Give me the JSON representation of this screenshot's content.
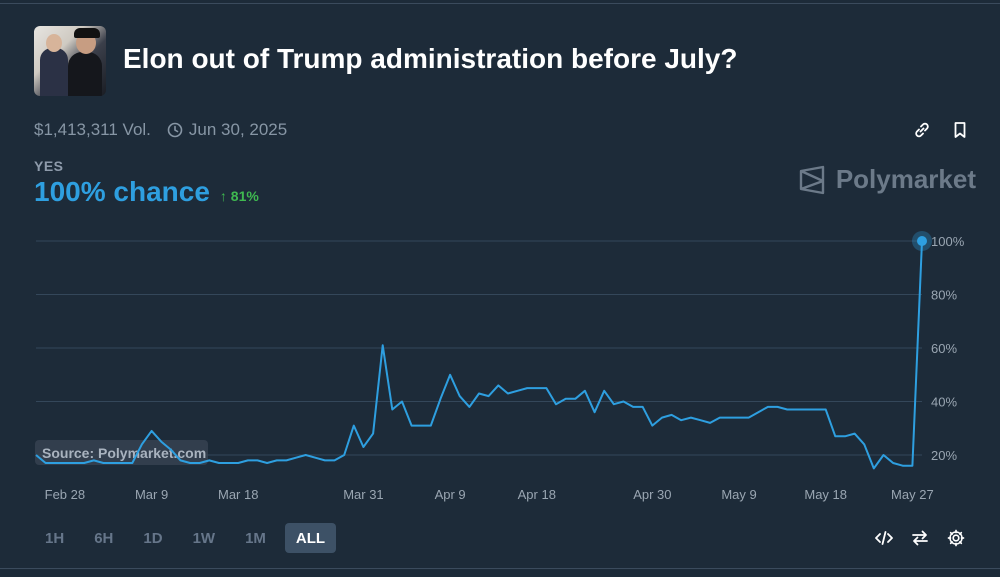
{
  "header": {
    "title": "Elon out of Trump administration before July?",
    "volume": "$1,413,311 Vol.",
    "end_date": "Jun 30, 2025"
  },
  "outcome": {
    "label": "YES",
    "chance": "100% chance",
    "delta": "81%",
    "delta_color": "#3fb950",
    "accent": "#2e9fe0"
  },
  "brand": {
    "name": "Polymarket"
  },
  "source_label": "Source: Polymarket.com",
  "time_ranges": [
    "1H",
    "6H",
    "1D",
    "1W",
    "1M",
    "ALL"
  ],
  "time_range_selected": "ALL",
  "icons": {
    "top": [
      "link-icon",
      "bookmark-icon"
    ],
    "bottom": [
      "embed-code-icon",
      "swap-icon",
      "settings-icon"
    ],
    "meta": "clock-icon"
  },
  "chart_data": {
    "type": "line",
    "x_start": "Feb 25",
    "x_tick_labels": [
      "Feb 28",
      "Mar 9",
      "Mar 18",
      "Mar 31",
      "Apr 9",
      "Apr 18",
      "Apr 30",
      "May 9",
      "May 18",
      "May 27"
    ],
    "y_tick_labels": [
      "20%",
      "40%",
      "60%",
      "80%",
      "100%"
    ],
    "ylim": [
      12,
      104
    ],
    "y_axis_side": "right",
    "grid": true,
    "series": [
      {
        "color": "#2e9fe0",
        "points": [
          [
            "Feb 25",
            20
          ],
          [
            "Feb 26",
            17
          ],
          [
            "Feb 27",
            17
          ],
          [
            "Feb 28",
            17
          ],
          [
            "Mar 1",
            17
          ],
          [
            "Mar 2",
            17
          ],
          [
            "Mar 3",
            18
          ],
          [
            "Mar 4",
            17
          ],
          [
            "Mar 5",
            17
          ],
          [
            "Mar 6",
            17
          ],
          [
            "Mar 7",
            17
          ],
          [
            "Mar 8",
            24
          ],
          [
            "Mar 9",
            29
          ],
          [
            "Mar 10",
            25
          ],
          [
            "Mar 11",
            22
          ],
          [
            "Mar 12",
            18
          ],
          [
            "Mar 13",
            17
          ],
          [
            "Mar 14",
            17
          ],
          [
            "Mar 15",
            18
          ],
          [
            "Mar 16",
            17
          ],
          [
            "Mar 17",
            17
          ],
          [
            "Mar 18",
            17
          ],
          [
            "Mar 19",
            18
          ],
          [
            "Mar 20",
            18
          ],
          [
            "Mar 21",
            17
          ],
          [
            "Mar 22",
            18
          ],
          [
            "Mar 23",
            18
          ],
          [
            "Mar 24",
            19
          ],
          [
            "Mar 25",
            20
          ],
          [
            "Mar 26",
            19
          ],
          [
            "Mar 27",
            18
          ],
          [
            "Mar 28",
            18
          ],
          [
            "Mar 29",
            20
          ],
          [
            "Mar 30",
            31
          ],
          [
            "Mar 31",
            23
          ],
          [
            "Apr 1",
            28
          ],
          [
            "Apr 2",
            61
          ],
          [
            "Apr 3",
            37
          ],
          [
            "Apr 4",
            40
          ],
          [
            "Apr 5",
            31
          ],
          [
            "Apr 6",
            31
          ],
          [
            "Apr 7",
            31
          ],
          [
            "Apr 8",
            41
          ],
          [
            "Apr 9",
            50
          ],
          [
            "Apr 10",
            42
          ],
          [
            "Apr 11",
            38
          ],
          [
            "Apr 12",
            43
          ],
          [
            "Apr 13",
            42
          ],
          [
            "Apr 14",
            46
          ],
          [
            "Apr 15",
            43
          ],
          [
            "Apr 16",
            44
          ],
          [
            "Apr 17",
            45
          ],
          [
            "Apr 18",
            45
          ],
          [
            "Apr 19",
            45
          ],
          [
            "Apr 20",
            39
          ],
          [
            "Apr 21",
            41
          ],
          [
            "Apr 22",
            41
          ],
          [
            "Apr 23",
            44
          ],
          [
            "Apr 24",
            36
          ],
          [
            "Apr 25",
            44
          ],
          [
            "Apr 26",
            39
          ],
          [
            "Apr 27",
            40
          ],
          [
            "Apr 28",
            38
          ],
          [
            "Apr 29",
            38
          ],
          [
            "Apr 30",
            31
          ],
          [
            "May 1",
            34
          ],
          [
            "May 2",
            35
          ],
          [
            "May 3",
            33
          ],
          [
            "May 4",
            34
          ],
          [
            "May 5",
            33
          ],
          [
            "May 6",
            32
          ],
          [
            "May 7",
            34
          ],
          [
            "May 8",
            34
          ],
          [
            "May 9",
            34
          ],
          [
            "May 10",
            34
          ],
          [
            "May 11",
            36
          ],
          [
            "May 12",
            38
          ],
          [
            "May 13",
            38
          ],
          [
            "May 14",
            37
          ],
          [
            "May 15",
            37
          ],
          [
            "May 16",
            37
          ],
          [
            "May 17",
            37
          ],
          [
            "May 18",
            37
          ],
          [
            "May 19",
            27
          ],
          [
            "May 20",
            27
          ],
          [
            "May 21",
            28
          ],
          [
            "May 22",
            24
          ],
          [
            "May 23",
            15
          ],
          [
            "May 24",
            20
          ],
          [
            "May 25",
            17
          ],
          [
            "May 26",
            16
          ],
          [
            "May 27",
            16
          ],
          [
            "May 28",
            100
          ]
        ]
      }
    ],
    "current_value": 100
  }
}
